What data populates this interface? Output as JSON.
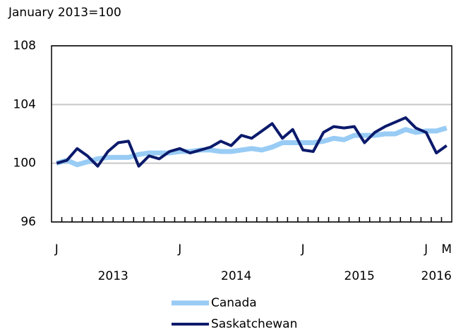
{
  "chart_data": {
    "type": "line",
    "subtitle": "January 2013=100",
    "categories": [
      "J",
      null,
      null,
      null,
      null,
      null,
      null,
      null,
      null,
      null,
      null,
      null,
      "J",
      null,
      null,
      null,
      null,
      null,
      null,
      null,
      null,
      null,
      null,
      null,
      "J",
      null,
      null,
      null,
      null,
      null,
      null,
      null,
      null,
      null,
      null,
      null,
      "J",
      null,
      "M"
    ],
    "year_labels": [
      "2013",
      "2014",
      "2015",
      "2016"
    ],
    "ylim": [
      96,
      108
    ],
    "yticks": [
      96,
      100,
      104,
      108
    ],
    "grid": true,
    "series": [
      {
        "name": "Canada",
        "color": "#99ccf5",
        "values": [
          100.0,
          100.2,
          99.9,
          100.1,
          100.3,
          100.4,
          100.4,
          100.4,
          100.6,
          100.7,
          100.7,
          100.7,
          100.8,
          100.8,
          100.9,
          100.9,
          100.8,
          100.8,
          100.9,
          101.0,
          100.9,
          101.1,
          101.4,
          101.4,
          101.4,
          101.4,
          101.5,
          101.7,
          101.6,
          101.9,
          101.9,
          101.9,
          102.0,
          102.0,
          102.3,
          102.1,
          102.2,
          102.2,
          102.4
        ]
      },
      {
        "name": "Saskatchewan",
        "color": "#0b1a6b",
        "values": [
          100.0,
          100.2,
          101.0,
          100.5,
          99.8,
          100.8,
          101.4,
          101.5,
          99.8,
          100.5,
          100.3,
          100.8,
          101.0,
          100.7,
          100.9,
          101.1,
          101.5,
          101.2,
          101.9,
          101.7,
          102.2,
          102.7,
          101.7,
          102.3,
          100.9,
          100.8,
          102.1,
          102.5,
          102.4,
          102.5,
          101.4,
          102.1,
          102.5,
          102.8,
          103.1,
          102.4,
          102.1,
          100.7,
          101.2
        ]
      }
    ]
  }
}
